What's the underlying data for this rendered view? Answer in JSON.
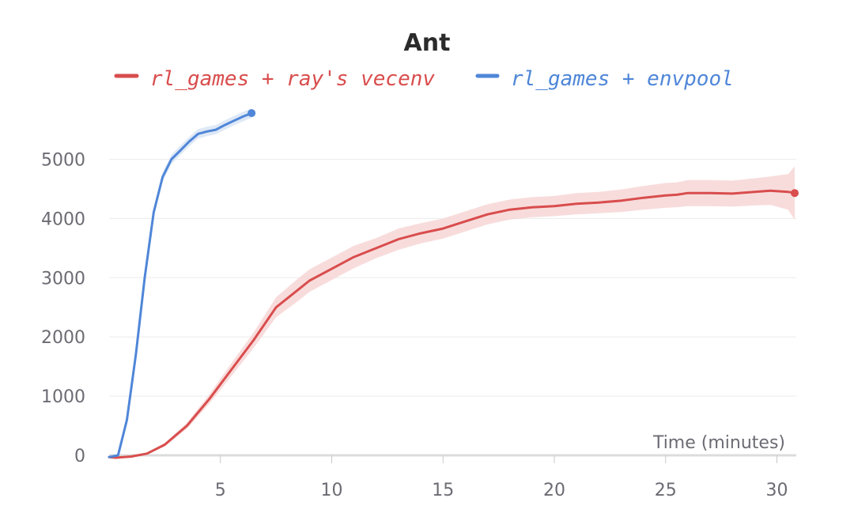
{
  "chart_data": {
    "type": "line",
    "title": "Ant",
    "xlabel": "Time (minutes)",
    "ylabel": "",
    "xlim": [
      0,
      31
    ],
    "ylim": [
      0,
      5500
    ],
    "x_ticks": [
      5,
      10,
      15,
      20,
      25,
      30
    ],
    "y_ticks": [
      0,
      1000,
      2000,
      3000,
      4000,
      5000
    ],
    "grid": true,
    "legend_position": "top",
    "series": [
      {
        "name": "rl_games + ray's vecenv",
        "color": "#d94d4d",
        "band_color": "#f7d6d6",
        "x": [
          0,
          0.3,
          1,
          1.7,
          2.5,
          3.5,
          4.5,
          5.5,
          6.5,
          7.5,
          8.5,
          9,
          10,
          11,
          12,
          13,
          14,
          15,
          16,
          17,
          17.5,
          18,
          19,
          20,
          21,
          22,
          23,
          24,
          25,
          25.5,
          26,
          27,
          28,
          29,
          29.7,
          30.5,
          30.8
        ],
        "y": [
          -30,
          -40,
          -20,
          30,
          180,
          500,
          950,
          1450,
          1950,
          2500,
          2800,
          2950,
          3150,
          3350,
          3500,
          3650,
          3750,
          3830,
          3950,
          4070,
          4110,
          4150,
          4190,
          4210,
          4250,
          4270,
          4300,
          4350,
          4390,
          4400,
          4430,
          4430,
          4420,
          4450,
          4470,
          4450,
          4430
        ],
        "lower": [
          -30,
          -40,
          -20,
          20,
          150,
          450,
          870,
          1340,
          1820,
          2330,
          2610,
          2760,
          2960,
          3160,
          3330,
          3470,
          3580,
          3660,
          3780,
          3900,
          3940,
          3980,
          4020,
          4040,
          4070,
          4090,
          4110,
          4150,
          4180,
          4190,
          4210,
          4210,
          4200,
          4220,
          4230,
          4150,
          3980
        ],
        "upper": [
          -30,
          -40,
          -20,
          40,
          210,
          550,
          1030,
          1560,
          2080,
          2670,
          2990,
          3140,
          3340,
          3540,
          3670,
          3830,
          3920,
          4000,
          4120,
          4240,
          4280,
          4320,
          4360,
          4380,
          4430,
          4450,
          4490,
          4550,
          4600,
          4610,
          4650,
          4650,
          4640,
          4680,
          4710,
          4750,
          4880
        ]
      },
      {
        "name": "rl_games + envpool",
        "color": "#4f86d8",
        "band_color": "#d9e5f5",
        "x": [
          0,
          0.4,
          0.8,
          1.2,
          1.6,
          2,
          2.4,
          2.8,
          3.2,
          3.6,
          4,
          4.4,
          4.8,
          5.2,
          5.6,
          6,
          6.4
        ],
        "y": [
          -30,
          0,
          600,
          1700,
          3000,
          4100,
          4700,
          5000,
          5150,
          5300,
          5430,
          5470,
          5500,
          5580,
          5650,
          5720,
          5780
        ],
        "lower": [
          -30,
          -10,
          560,
          1650,
          2940,
          4030,
          4620,
          4920,
          5070,
          5220,
          5350,
          5390,
          5420,
          5500,
          5570,
          5640,
          5700
        ],
        "upper": [
          -30,
          10,
          640,
          1750,
          3060,
          4170,
          4780,
          5080,
          5230,
          5380,
          5510,
          5550,
          5580,
          5660,
          5730,
          5800,
          5860
        ]
      }
    ]
  }
}
